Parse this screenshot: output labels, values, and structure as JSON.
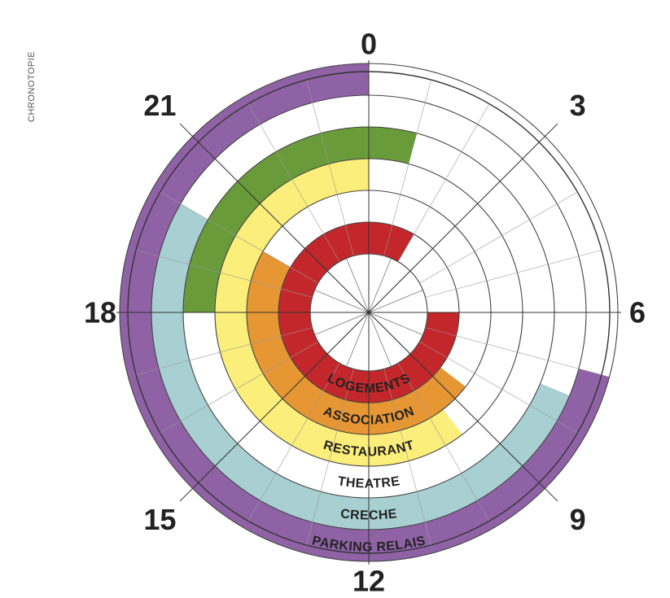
{
  "page": {
    "side_label": "CHRONOTOPIE"
  },
  "chart_data": {
    "type": "radial-schedule",
    "title": "",
    "hours_per_turn": 24,
    "hour_labels": [
      "0",
      "3",
      "6",
      "9",
      "12",
      "15",
      "18",
      "21"
    ],
    "grid": true,
    "rings": [
      {
        "name": "LOGEMENTS",
        "color": "#c3272b",
        "intervals": [
          [
            6,
            24
          ],
          [
            0,
            2
          ]
        ]
      },
      {
        "name": "ASSOCIATION",
        "color": "#e79634",
        "intervals": [
          [
            8.5,
            20
          ]
        ]
      },
      {
        "name": "RESTAURANT",
        "color": "#fbee7a",
        "intervals": [
          [
            9.5,
            24
          ]
        ]
      },
      {
        "name": "THEATRE",
        "color": "#6a9b3a",
        "intervals": [
          [
            18,
            24
          ],
          [
            0,
            1
          ]
        ]
      },
      {
        "name": "CRECHE",
        "color": "#a8d0d2",
        "intervals": [
          [
            7.5,
            20
          ]
        ]
      },
      {
        "name": "PARKING RELAIS",
        "color": "#8f62a6",
        "intervals": [
          [
            7,
            24
          ]
        ]
      }
    ]
  }
}
